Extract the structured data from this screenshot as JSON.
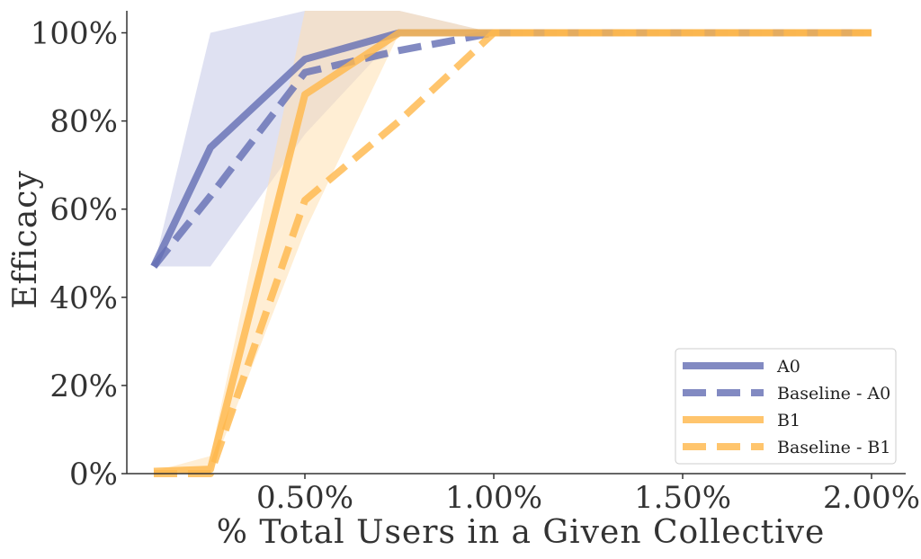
{
  "chart_data": {
    "type": "line",
    "xlabel": "% Total Users in a Given Collective",
    "ylabel": "Efficacy",
    "xlim": [
      0.0,
      2.08
    ],
    "ylim": [
      0,
      105
    ],
    "x_ticks": [
      0.5,
      1.0,
      1.5,
      2.0
    ],
    "x_tick_labels": [
      "0.50%",
      "1.00%",
      "1.50%",
      "2.00%"
    ],
    "y_ticks": [
      0,
      20,
      40,
      60,
      80,
      100
    ],
    "y_tick_labels": [
      "0%",
      "20%",
      "40%",
      "60%",
      "80%",
      "100%"
    ],
    "grid": false,
    "legend_position": "lower-right",
    "x": [
      0.1,
      0.25,
      0.5,
      0.75,
      1.0,
      2.0
    ],
    "series": [
      {
        "name": "A0",
        "values": [
          47,
          74,
          94,
          100,
          100,
          100
        ],
        "color": "#6670b5",
        "dash": "solid",
        "band_lower": [
          47,
          47,
          77,
          100,
          100,
          100
        ],
        "band_upper": [
          47,
          100,
          105,
          105,
          100,
          100
        ],
        "band_color": "#c5c9e8"
      },
      {
        "name": "Baseline - A0",
        "values": [
          47,
          63,
          91,
          96,
          100,
          100
        ],
        "color": "#6670b5",
        "dash": "dashed"
      },
      {
        "name": "B1",
        "values": [
          0.5,
          1,
          86,
          100,
          100,
          100
        ],
        "color": "#ffb84d",
        "dash": "solid",
        "band_lower": [
          0.5,
          0,
          55,
          100,
          100,
          100
        ],
        "band_upper": [
          0.5,
          4,
          105,
          105,
          100,
          100
        ],
        "band_color": "#ffe0b0"
      },
      {
        "name": "Baseline - B1",
        "values": [
          0,
          0,
          62,
          80,
          100,
          100
        ],
        "color": "#ffb84d",
        "dash": "dashed"
      }
    ]
  }
}
